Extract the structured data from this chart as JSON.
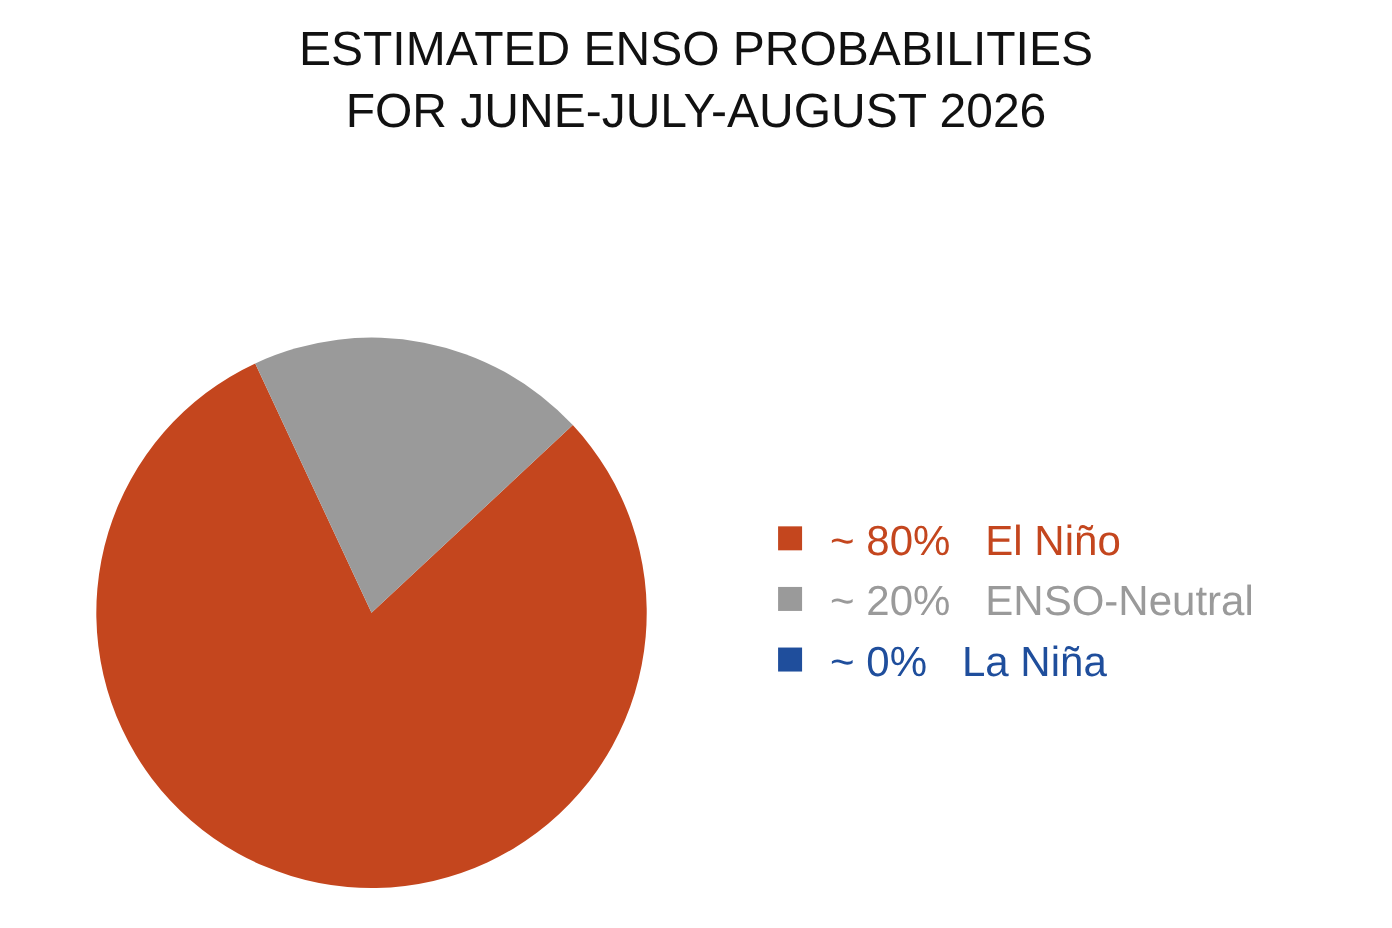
{
  "chart_data": {
    "type": "pie",
    "title": "ESTIMATED ENSO PROBABILITIES\nFOR JUNE-JULY-AUGUST 2026",
    "categories": [
      "El Niño",
      "ENSO-Neutral",
      "La Niña"
    ],
    "values": [
      80,
      20,
      0
    ],
    "value_labels": [
      "~ 80%",
      "~ 20%",
      "~ 0%"
    ],
    "colors": [
      "#c4461e",
      "#9a9a9a",
      "#1f4e9c"
    ],
    "legend": "right"
  }
}
